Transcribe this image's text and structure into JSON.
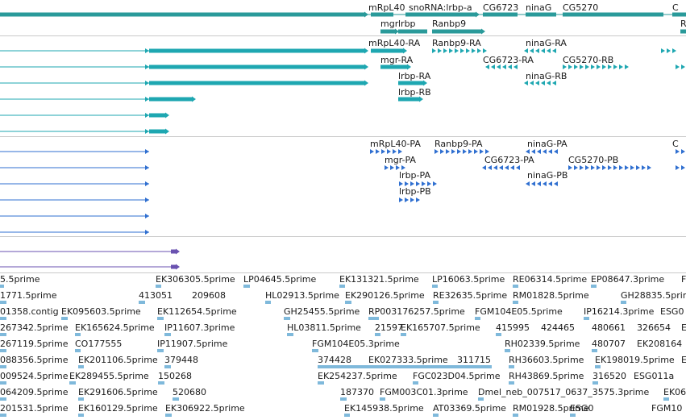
{
  "colors": {
    "gene_teal": "#2a9a9a",
    "transcript_teal": "#1ea7b1",
    "transcript_blue": "#2f6fd0",
    "est_purple": "#6a52b0",
    "est_lightblue": "#7fb9db",
    "separator": "#c9c9c9"
  },
  "tracks": {
    "genes": {
      "labels": [
        "mRpL40",
        "snoRNA:lrbp-a",
        "CG6723",
        "ninaG",
        "CG5270",
        "C",
        "mgr",
        "lrbp",
        "Ranbp9",
        "R"
      ]
    },
    "transcripts_a": {
      "labels": [
        "mRpL40-RA",
        "Ranbp9-RA",
        "ninaG-RA",
        "mgr-RA",
        "CG6723-RA",
        "CG5270-RB",
        "lrbp-RA",
        "ninaG-RB",
        "lrbp-RB"
      ]
    },
    "transcripts_b": {
      "labels": [
        "mRpL40-PA",
        "Ranbp9-PA",
        "ninaG-PA",
        "C",
        "mgr-PA",
        "CG6723-PA",
        "CG5270-PB",
        "lrbp-PA",
        "ninaG-PB",
        "lrbp-PB"
      ]
    },
    "ests": {
      "labels": [
        "5.5prime",
        "EK306305.5prime",
        "LP04645.5prime",
        "EK131321.5prime",
        "LP16063.5prime",
        "RE06314.5prime",
        "EP08647.3prime",
        "F",
        "1771.5prime",
        "413051",
        "209608",
        "HL02913.5prime",
        "EK290126.5prime",
        "RE32635.5prime",
        "RM01828.5prime",
        "GH28835.5prime",
        "01358.contig",
        "EK095603.5prime",
        "EK112654.5prime",
        "GH25455.5prime",
        "RP003176257.5prime",
        "FGM104E05.5prime",
        "IP16214.3prime",
        "ESG0",
        "267342.5prime",
        "EK165624.5prime",
        "IP11607.3prime",
        "HL03811.5prime",
        "21597",
        "EK165707.5prime",
        "415995",
        "424465",
        "480661",
        "326654",
        "E",
        "267119.5prime",
        "CO177555",
        "IP11907.5prime",
        "FGM104E05.3prime",
        "RH02339.5prime",
        "480707",
        "EK208164",
        "088356.5prime",
        "EK201106.5prime",
        "379448",
        "374428",
        "EK027333.5prime",
        "311715",
        "RH36603.5prime",
        "EK198019.5prime",
        "E",
        "009524.5prime",
        "EK289455.5prime",
        "150268",
        "EK254237.5prime",
        "FGC023D04.5prime",
        "RH43869.5prime",
        "316520",
        "ESG011a",
        "064209.5prime",
        "EK291606.5prime",
        "520680",
        "187370",
        "FGM003C01.3prime",
        "Dmel_neb_007517_0637_3575.3prime",
        "EK06",
        "201531.5prime",
        "EK160129.5prime",
        "EK306922.5prime",
        "EK145938.5prime",
        "AT03369.5prime",
        "RM01928.5prime",
        "ESG0",
        "FGM10"
      ]
    }
  }
}
